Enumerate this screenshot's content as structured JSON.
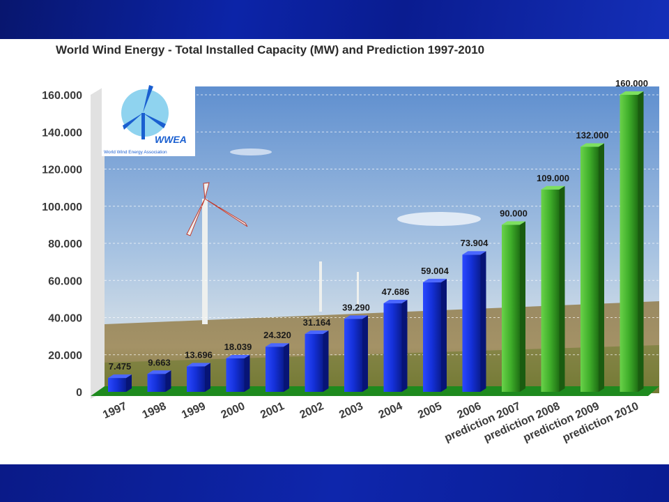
{
  "chart_data": {
    "type": "bar",
    "title": "World Wind Energy - Total Installed Capacity (MW) and Prediction 1997-2010",
    "categories": [
      "1997",
      "1998",
      "1999",
      "2000",
      "2001",
      "2002",
      "2003",
      "2004",
      "2005",
      "2006",
      "prediction 2007",
      "prediction 2008",
      "prediction 2009",
      "prediction 2010"
    ],
    "values": [
      7475,
      9663,
      13696,
      18039,
      24320,
      31164,
      39290,
      47686,
      59004,
      73904,
      90000,
      109000,
      132000,
      160000
    ],
    "data_labels": [
      "7.475",
      "9.663",
      "13.696",
      "18.039",
      "24.320",
      "31.164",
      "39.290",
      "47.686",
      "59.004",
      "73.904",
      "90.000",
      "109.000",
      "132.000",
      "160.000"
    ],
    "colors": [
      "#1430d8",
      "#1430d8",
      "#1430d8",
      "#1430d8",
      "#1430d8",
      "#1430d8",
      "#1430d8",
      "#1430d8",
      "#1430d8",
      "#1430d8",
      "#3fae2a",
      "#3fae2a",
      "#3fae2a",
      "#3fae2a"
    ],
    "ylim": [
      0,
      160000
    ],
    "yticks": [
      0,
      20000,
      40000,
      60000,
      80000,
      100000,
      120000,
      140000,
      160000
    ],
    "ytick_labels": [
      "0",
      "20.000",
      "40.000",
      "60.000",
      "80.000",
      "100.000",
      "120.000",
      "140.000",
      "160.000"
    ],
    "grid": true,
    "xlabel": "",
    "ylabel": ""
  },
  "logo": {
    "text": "WWEA",
    "subtext": "World Wind Energy Association"
  },
  "colors": {
    "band": "#0a1a8c",
    "historic": "#1430d8",
    "prediction": "#3fae2a",
    "floor": "#1e8a1e"
  }
}
